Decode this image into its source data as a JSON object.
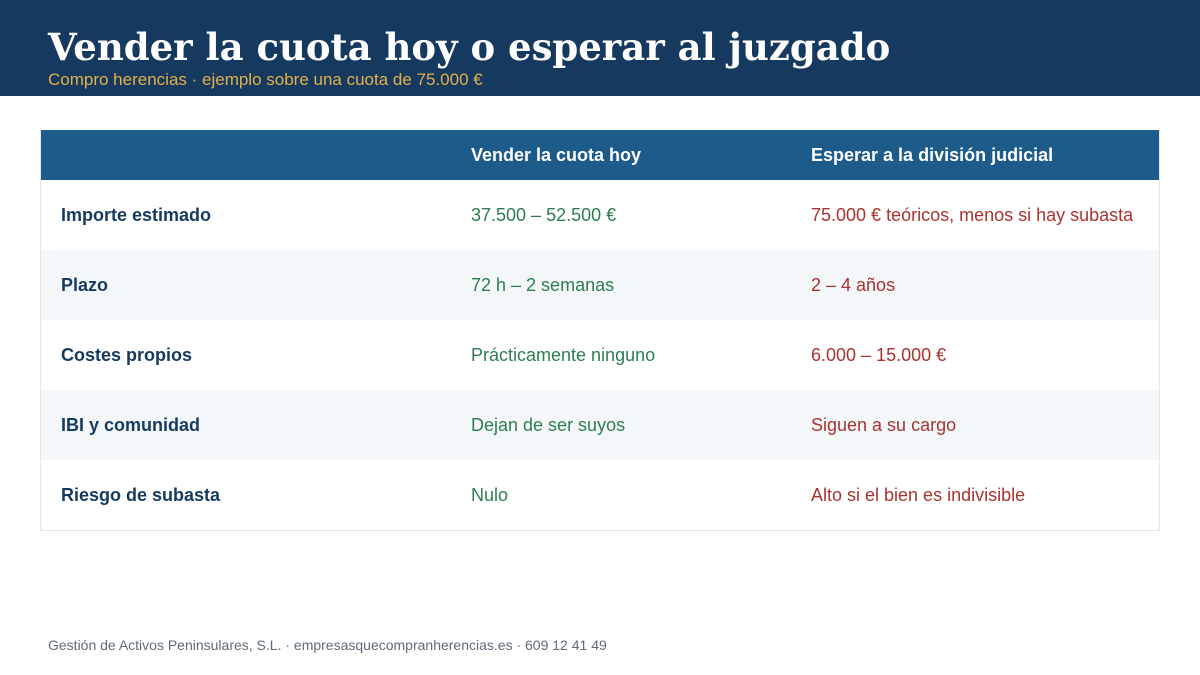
{
  "header": {
    "title": "Vender la cuota hoy o esperar al juzgado",
    "subtitle": "Compro herencias · ejemplo sobre una cuota de 75.000 €"
  },
  "colors": {
    "header_bg": "#163a5f",
    "accent": "#e0b04a",
    "table_header_bg": "#1d5b8a",
    "positive": "#2e7d4f",
    "negative": "#a8332f"
  },
  "table": {
    "columns": [
      "",
      "Vender la cuota hoy",
      "Esperar a la división judicial"
    ],
    "rows": [
      {
        "label": "Importe estimado",
        "sell": "37.500 – 52.500 €",
        "wait": "75.000 € teóricos, menos si hay subasta"
      },
      {
        "label": "Plazo",
        "sell": "72 h – 2 semanas",
        "wait": "2 – 4 años"
      },
      {
        "label": "Costes propios",
        "sell": "Prácticamente ninguno",
        "wait": "6.000 – 15.000 €"
      },
      {
        "label": "IBI y comunidad",
        "sell": "Dejan de ser suyos",
        "wait": "Siguen a su cargo"
      },
      {
        "label": "Riesgo de subasta",
        "sell": "Nulo",
        "wait": "Alto si el bien es indivisible"
      }
    ]
  },
  "footer": {
    "text": "Gestión de Activos Peninsulares, S.L. · empresasquecompranherencias.es · 609 12 41 49"
  }
}
